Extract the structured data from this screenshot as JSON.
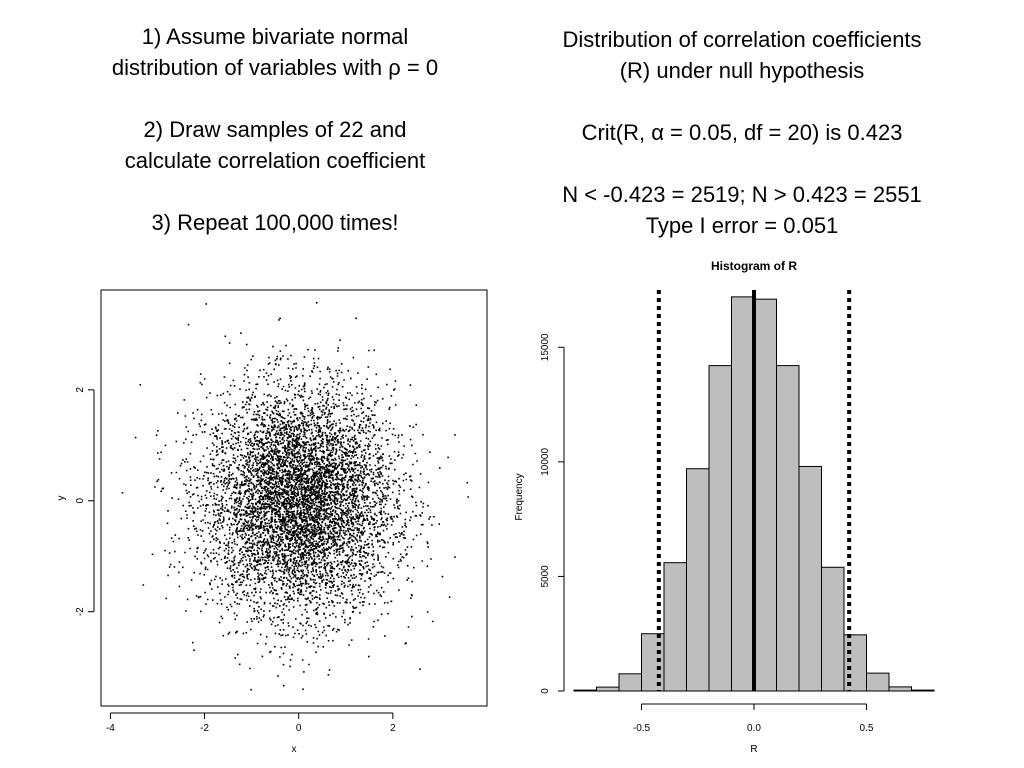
{
  "left_text": {
    "step1_line1": "1) Assume bivariate normal",
    "step1_line2": "distribution of variables with ρ = 0",
    "step2_line1": "2) Draw samples of 22 and",
    "step2_line2": "calculate correlation coefficient",
    "step3": "3) Repeat 100,000 times!"
  },
  "right_text": {
    "line1": "Distribution of correlation coefficients",
    "line2": "(R) under null hypothesis",
    "line3": "Crit(R, α = 0.05, df = 20) is 0.423",
    "line4": "N < -0.423 = 2519; N > 0.423 = 2551",
    "line5": "Type I error = 0.051"
  },
  "chart_data": [
    {
      "type": "scatter",
      "title": "",
      "xlabel": "x",
      "ylabel": "y",
      "xlim": [
        -4.2,
        4.0
      ],
      "ylim": [
        -3.7,
        3.8
      ],
      "x_ticks": [
        -4,
        -2,
        0,
        2
      ],
      "y_ticks": [
        -2,
        0,
        2
      ],
      "distribution": "bivariate normal, mean 0, sd 1, rho 0",
      "n_points_shown": 8000,
      "point_color": "#000000"
    },
    {
      "type": "bar",
      "title": "Histogram of R",
      "xlabel": "R",
      "ylabel": "Frequency",
      "xlim": [
        -0.8,
        0.8
      ],
      "ylim": [
        0,
        17500
      ],
      "x_ticks": [
        -0.5,
        0.0,
        0.5
      ],
      "x_tick_labels": [
        "-0.5",
        "0.0",
        "0.5"
      ],
      "y_ticks": [
        0,
        5000,
        10000,
        15000
      ],
      "bin_edges": [
        -0.8,
        -0.7,
        -0.6,
        -0.5,
        -0.4,
        -0.3,
        -0.2,
        -0.1,
        0.0,
        0.1,
        0.2,
        0.3,
        0.4,
        0.5,
        0.6,
        0.7,
        0.8
      ],
      "values": [
        40,
        170,
        750,
        2500,
        5600,
        9700,
        14200,
        17200,
        17100,
        14200,
        9800,
        5400,
        2450,
        780,
        180,
        40
      ],
      "bar_color": "#bebebe",
      "reference_lines": [
        {
          "x": -0.423,
          "style": "dotted"
        },
        {
          "x": 0.0,
          "style": "solid"
        },
        {
          "x": 0.423,
          "style": "dotted"
        }
      ]
    }
  ]
}
